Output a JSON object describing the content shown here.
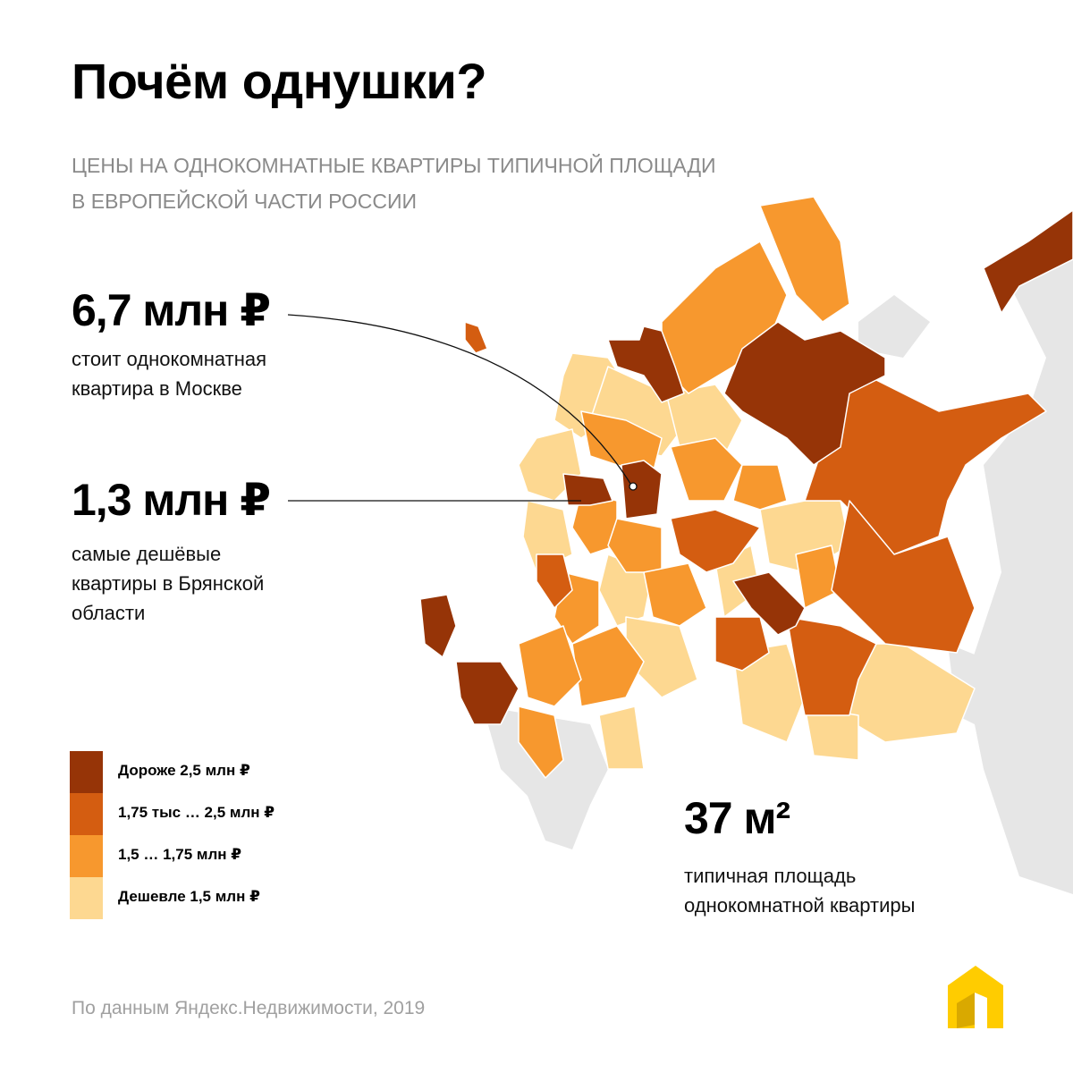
{
  "title": "Почём однушки?",
  "subtitle": {
    "line1": "Цены на однокомнатные квартиры типичной площади",
    "line2": "в европейской части России"
  },
  "stats": {
    "moscow": {
      "value": "6,7 млн ₽",
      "desc_line1": "стоит однокомнатная",
      "desc_line2": "квартира в Москве"
    },
    "bryansk": {
      "value": "1,3 млн ₽",
      "desc_line1": "самые дешёвые",
      "desc_line2": "квартиры в Брянской",
      "desc_line3": "области"
    },
    "area": {
      "value": "37 м²",
      "desc_line1": "типичная площадь",
      "desc_line2": "однокомнатной квартиры"
    }
  },
  "legend": [
    {
      "label": "Дороже 2,5 млн ₽",
      "color": "#963407"
    },
    {
      "label": "1,75 тыс … 2,5 млн ₽",
      "color": "#D45D11"
    },
    {
      "label": "1,5 … 1,75 млн ₽",
      "color": "#F7982E"
    },
    {
      "label": "Дешевле 1,5 млн ₽",
      "color": "#FDD891"
    }
  ],
  "source": "По данным Яндекс.Недвижимости, 2019",
  "colors": {
    "background_land": "#E6E6E6",
    "brand_logo": "#FFCC00"
  }
}
